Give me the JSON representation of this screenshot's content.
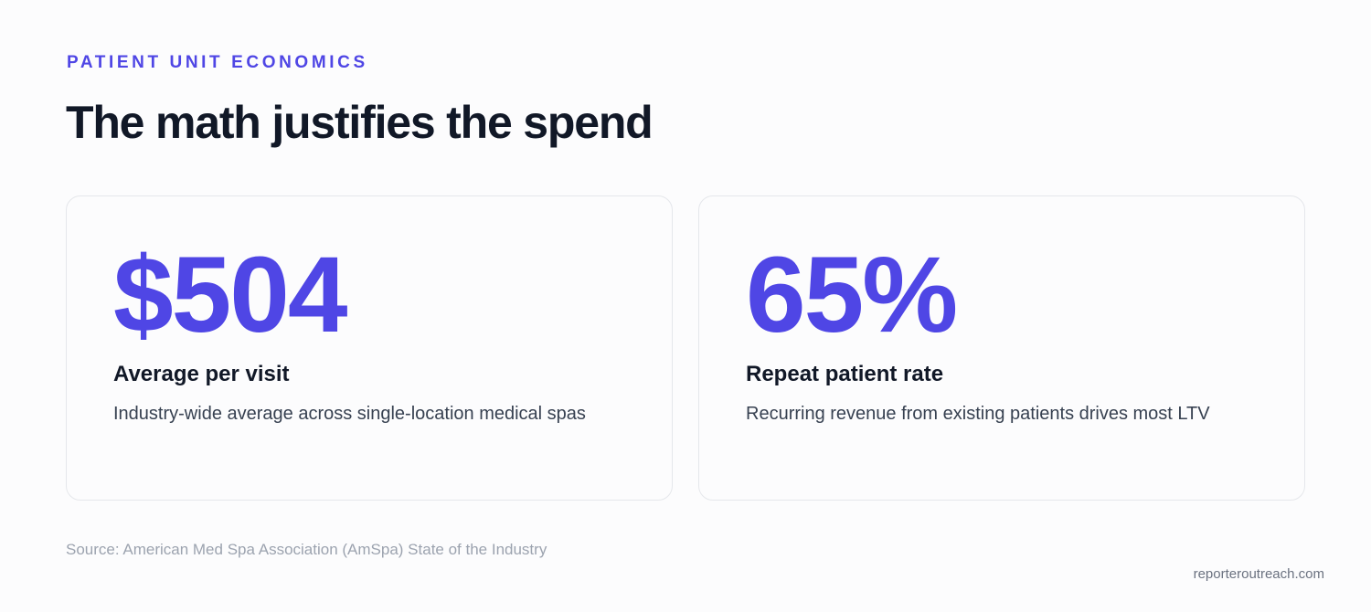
{
  "header": {
    "eyebrow": "PATIENT UNIT ECONOMICS",
    "title": "The math justifies the spend"
  },
  "cards": [
    {
      "stat": "$504",
      "title": "Average per visit",
      "description": "Industry-wide average across single-location medical spas"
    },
    {
      "stat": "65%",
      "title": "Repeat patient rate",
      "description": "Recurring revenue from existing patients drives most LTV"
    }
  ],
  "footer": {
    "source": "Source: American Med Spa Association (AmSpa) State of the Industry",
    "brand": "reporteroutreach.com"
  },
  "colors": {
    "accent": "#4f46e5",
    "heading": "#111827",
    "body": "#374151",
    "muted": "#9ca3af"
  }
}
